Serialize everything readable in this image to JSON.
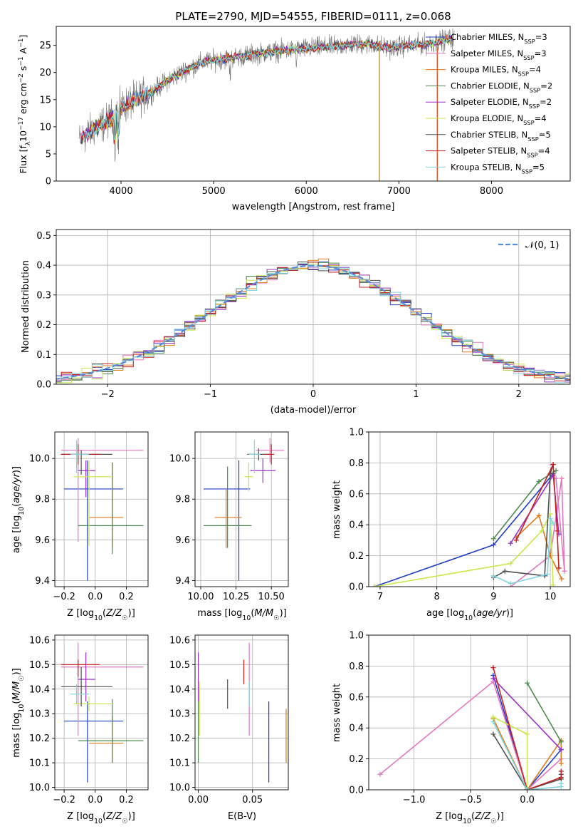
{
  "chart_data": [
    {
      "type": "line",
      "title": "PLATE=2790, MJD=54555, FIBERID=0111, z=0.068",
      "xlabel": "wavelength [Angstrom, rest frame]",
      "ylabel": "Flux [f_λ10^-17 erg cm^-2 s^-1 A^-1]",
      "xlim": [
        3300,
        8850
      ],
      "ylim": [
        0,
        28.5
      ],
      "xticks": [
        "4000",
        "5000",
        "6000",
        "7000",
        "8000"
      ],
      "yticks": [
        "0",
        "5",
        "10",
        "15",
        "20",
        "25"
      ],
      "spectrum_continuum": {
        "x": [
          3550,
          3700,
          3850,
          4000,
          4150,
          4300,
          4500,
          4700,
          4900,
          5100,
          5300,
          5500,
          5700,
          5900,
          6100,
          6300,
          6500,
          6700,
          6900,
          7100,
          7300,
          7500,
          7600
        ],
        "y": [
          7.5,
          9.5,
          11,
          13.5,
          15,
          16,
          18.5,
          20.5,
          22,
          22.5,
          23,
          23.5,
          24,
          24.2,
          24.6,
          24.8,
          25.2,
          25.2,
          24.5,
          25,
          25.2,
          26,
          26.3
        ]
      },
      "legend_placement": "top-right",
      "series": [
        {
          "name": "Chabrier MILES",
          "nssp": "3",
          "color": "#1f3fc8"
        },
        {
          "name": "Salpeter MILES",
          "nssp": "3",
          "color": "#e377c2"
        },
        {
          "name": "Kroupa MILES",
          "nssp": "4",
          "color": "#e07b1a"
        },
        {
          "name": "Chabrier ELODIE",
          "nssp": "2",
          "color": "#4e8a4e"
        },
        {
          "name": "Salpeter ELODIE",
          "nssp": "2",
          "color": "#9b30c8"
        },
        {
          "name": "Kroupa ELODIE",
          "nssp": "4",
          "color": "#c8e84a"
        },
        {
          "name": "Chabrier STELIB",
          "nssp": "5",
          "color": "#505050"
        },
        {
          "name": "Salpeter STELIB",
          "nssp": "4",
          "color": "#c81e1e"
        },
        {
          "name": "Kroupa STELIB",
          "nssp": "5",
          "color": "#7fd6e0"
        }
      ]
    },
    {
      "type": "line",
      "xlabel": "(data-model)/error",
      "ylabel": "Normed distribution",
      "xlim": [
        -2.5,
        2.5
      ],
      "ylim": [
        0,
        0.52
      ],
      "xticks": [
        "−2",
        "−1",
        "0",
        "1",
        "2"
      ],
      "yticks": [
        "0.0",
        "0.1",
        "0.2",
        "0.3",
        "0.4",
        "0.5"
      ],
      "legend": "𝒩(0, 1)",
      "legend_placement": "top-right",
      "gaussian": {
        "mu": 0,
        "sigma": 1
      },
      "histogram_bin_width": 0.1,
      "grid": true
    },
    {
      "type": "scatter",
      "xlabel": "Z [log10(Z/Z☉)]",
      "ylabel": "age  [log10(age/yr)]",
      "xlim": [
        -0.26,
        0.34
      ],
      "ylim": [
        9.37,
        10.13
      ],
      "xticks": [
        "−0.2",
        "0.0",
        "0.2"
      ],
      "yticks": [
        "9.4",
        "9.6",
        "9.8",
        "10.0"
      ],
      "points": [
        {
          "x": -0.05,
          "xerr": [
            0.15,
            0.23
          ],
          "y": 9.85,
          "yerr": [
            0.45,
            0.14
          ],
          "color": "#1f3fc8"
        },
        {
          "x": -0.11,
          "xerr": [
            0.11,
            0.42
          ],
          "y": 10.04,
          "yerr": [
            0.45,
            0.06
          ],
          "color": "#e377c2"
        },
        {
          "x": 0.11,
          "xerr": [
            0.15,
            0.07
          ],
          "y": 9.71,
          "yerr": [
            0.15,
            0.27
          ],
          "color": "#e07b1a"
        },
        {
          "x": 0.11,
          "xerr": [
            0.22,
            0.2
          ],
          "y": 9.67,
          "yerr": [
            0.14,
            0.31
          ],
          "color": "#4e8a4e"
        },
        {
          "x": -0.06,
          "xerr": [
            0.05,
            0.06
          ],
          "y": 9.94,
          "yerr": [
            0.13,
            0.05
          ],
          "color": "#9b30c8"
        },
        {
          "x": -0.04,
          "xerr": [
            0.1,
            0.15
          ],
          "y": 9.91,
          "yerr": [
            0.34,
            0.08
          ],
          "color": "#c8e84a"
        },
        {
          "x": -0.09,
          "xerr": [
            0.13,
            0.2
          ],
          "y": 10.02,
          "yerr": [
            0.1,
            0.02
          ],
          "color": "#505050"
        },
        {
          "x": -0.11,
          "xerr": [
            0.11,
            0.14
          ],
          "y": 10.02,
          "yerr": [
            0.05,
            0.05
          ],
          "color": "#c81e1e"
        },
        {
          "x": -0.12,
          "xerr": [
            0.04,
            0.08
          ],
          "y": 10.02,
          "yerr": [
            0.09,
            0.07
          ],
          "color": "#7fd6e0"
        }
      ]
    },
    {
      "type": "scatter",
      "xlabel": "mass [log10(M/M☉)]",
      "xlim": [
        9.96,
        10.62
      ],
      "ylim": [
        9.37,
        10.13
      ],
      "xticks": [
        "10.00",
        "10.25",
        "10.50"
      ],
      "yticks": [
        "9.4",
        "9.6",
        "9.8",
        "10.0"
      ],
      "points": [
        {
          "x": 10.27,
          "xerr": [
            0.25,
            0.08
          ],
          "y": 9.85,
          "yerr": [
            0.45,
            0.14
          ],
          "color": "#1f3fc8"
        },
        {
          "x": 10.49,
          "xerr": [
            0.1,
            0.1
          ],
          "y": 10.04,
          "yerr": [
            0.06,
            0.06
          ],
          "color": "#e377c2"
        },
        {
          "x": 10.18,
          "xerr": [
            0.08,
            0.11
          ],
          "y": 9.71,
          "yerr": [
            0.15,
            0.14
          ],
          "color": "#e07b1a"
        },
        {
          "x": 10.19,
          "xerr": [
            0.17,
            0.17
          ],
          "y": 9.67,
          "yerr": [
            0.11,
            0.29
          ],
          "color": "#4e8a4e"
        },
        {
          "x": 10.44,
          "xerr": [
            0.09,
            0.09
          ],
          "y": 9.94,
          "yerr": [
            0.06,
            0.06
          ],
          "color": "#9b30c8"
        },
        {
          "x": 10.34,
          "xerr": [
            0.03,
            0.03
          ],
          "y": 9.91,
          "yerr": [
            0.07,
            0.07
          ],
          "color": "#c8e84a"
        },
        {
          "x": 10.41,
          "xerr": [
            0.08,
            0.08
          ],
          "y": 10.02,
          "yerr": [
            0.03,
            0.03
          ],
          "color": "#505050"
        },
        {
          "x": 10.5,
          "xerr": [
            0.05,
            0.02
          ],
          "y": 10.02,
          "yerr": [
            0.05,
            0.05
          ],
          "color": "#c81e1e"
        },
        {
          "x": 10.38,
          "xerr": [
            0.04,
            0.04
          ],
          "y": 10.02,
          "yerr": [
            0.09,
            0.07
          ],
          "color": "#7fd6e0"
        }
      ]
    },
    {
      "type": "line",
      "xlabel": "age  [log10(age/yr)]",
      "ylabel": "mass weight",
      "xlim": [
        6.8,
        10.35
      ],
      "ylim": [
        0,
        1
      ],
      "xticks": [
        "7",
        "8",
        "9",
        "10"
      ],
      "yticks": [
        "0.0",
        "0.2",
        "0.4",
        "0.6",
        "0.8",
        "1.0"
      ],
      "grid": true,
      "series": [
        {
          "color": "#1f3fc8",
          "x": [
            6.9,
            9.0,
            10.05
          ],
          "y": [
            0.0,
            0.27,
            0.73
          ]
        },
        {
          "color": "#e377c2",
          "x": [
            9.3,
            10.0,
            10.2,
            10.25,
            10.1
          ],
          "y": [
            0.0,
            0.2,
            0.7,
            0.1,
            0.7
          ]
        },
        {
          "color": "#e07b1a",
          "x": [
            9.4,
            9.8,
            10.0,
            10.2
          ],
          "y": [
            0.32,
            0.46,
            0.2,
            0.05
          ]
        },
        {
          "color": "#4e8a4e",
          "x": [
            9.0,
            9.8,
            10.1
          ],
          "y": [
            0.31,
            0.68,
            0.75
          ]
        },
        {
          "color": "#9b30c8",
          "x": [
            9.3,
            10.05,
            10.15
          ],
          "y": [
            0.28,
            0.72,
            0.34
          ]
        },
        {
          "color": "#c8e84a",
          "x": [
            6.9,
            9.3,
            9.85,
            10.0,
            10.05
          ],
          "y": [
            0.0,
            0.15,
            0.36,
            0.47,
            0.01
          ]
        },
        {
          "color": "#505050",
          "x": [
            9.0,
            9.2,
            9.9,
            10.0,
            10.05
          ],
          "y": [
            0.06,
            0.1,
            0.07,
            0.73,
            0.79
          ]
        },
        {
          "color": "#c81e1e",
          "x": [
            9.4,
            10.05,
            10.12,
            10.15
          ],
          "y": [
            0.3,
            0.79,
            0.36,
            0.12
          ]
        },
        {
          "color": "#7fd6e0",
          "x": [
            9.0,
            9.3,
            9.95,
            10.0,
            10.05
          ],
          "y": [
            0.07,
            0.02,
            0.08,
            0.44,
            0.41
          ]
        }
      ]
    },
    {
      "type": "scatter",
      "xlabel": "Z [log10(Z/Z☉)]",
      "ylabel": "mass [log10(M/M☉)]",
      "xlim": [
        -0.26,
        0.34
      ],
      "ylim": [
        9.99,
        10.62
      ],
      "xticks": [
        "−0.2",
        "0.0",
        "0.2"
      ],
      "yticks": [
        "10.0",
        "10.1",
        "10.2",
        "10.3",
        "10.4",
        "10.5",
        "10.6"
      ],
      "points": [
        {
          "x": -0.05,
          "xerr": [
            0.15,
            0.23
          ],
          "y": 10.27,
          "yerr": [
            0.25,
            0.08
          ],
          "color": "#1f3fc8"
        },
        {
          "x": -0.11,
          "xerr": [
            0.11,
            0.42
          ],
          "y": 10.49,
          "yerr": [
            0.28,
            0.1
          ],
          "color": "#e377c2"
        },
        {
          "x": 0.11,
          "xerr": [
            0.15,
            0.07
          ],
          "y": 10.18,
          "yerr": [
            0.08,
            0.11
          ],
          "color": "#e07b1a"
        },
        {
          "x": 0.11,
          "xerr": [
            0.22,
            0.2
          ],
          "y": 10.19,
          "yerr": [
            0.09,
            0.17
          ],
          "color": "#4e8a4e"
        },
        {
          "x": -0.06,
          "xerr": [
            0.05,
            0.06
          ],
          "y": 10.44,
          "yerr": [
            0.09,
            0.11
          ],
          "color": "#9b30c8"
        },
        {
          "x": -0.04,
          "xerr": [
            0.1,
            0.15
          ],
          "y": 10.34,
          "yerr": [
            0.03,
            0.03
          ],
          "color": "#c8e84a"
        },
        {
          "x": -0.09,
          "xerr": [
            0.13,
            0.2
          ],
          "y": 10.41,
          "yerr": [
            0.08,
            0.08
          ],
          "color": "#505050"
        },
        {
          "x": -0.11,
          "xerr": [
            0.11,
            0.14
          ],
          "y": 10.5,
          "yerr": [
            0.05,
            0.02
          ],
          "color": "#c81e1e"
        },
        {
          "x": -0.12,
          "xerr": [
            0.04,
            0.08
          ],
          "y": 10.38,
          "yerr": [
            0.04,
            0.04
          ],
          "color": "#7fd6e0"
        }
      ]
    },
    {
      "type": "scatter",
      "xlabel": "E(B-V)",
      "xlim": [
        -0.003,
        0.083
      ],
      "ylim": [
        9.99,
        10.62
      ],
      "xticks": [
        "0.00",
        "0.05"
      ],
      "yticks": [
        "10.0",
        "10.1",
        "10.2",
        "10.3",
        "10.4",
        "10.5",
        "10.6"
      ],
      "points": [
        {
          "x": 0.065,
          "y": 10.27,
          "yerr": [
            0.25,
            0.08
          ],
          "color": "#1f3fc8"
        },
        {
          "x": 0.047,
          "y": 10.49,
          "yerr": [
            0.28,
            0.1
          ],
          "color": "#e377c2"
        },
        {
          "x": 0.081,
          "y": 10.18,
          "yerr": [
            0.08,
            0.14
          ],
          "color": "#e07b1a"
        },
        {
          "x": 0.0,
          "y": 10.19,
          "yerr": [
            0.09,
            0.24
          ],
          "color": "#4e8a4e"
        },
        {
          "x": 0.0,
          "y": 10.44,
          "yerr": [
            0.09,
            0.11
          ],
          "color": "#9b30c8"
        },
        {
          "x": 0.001,
          "y": 10.34,
          "yerr": [
            0.13,
            0.09
          ],
          "color": "#c8e84a"
        },
        {
          "x": 0.027,
          "y": 10.38,
          "yerr": [
            0.06,
            0.06
          ],
          "color": "#505050"
        },
        {
          "x": 0.042,
          "y": 10.47,
          "yerr": [
            0.05,
            0.05
          ],
          "color": "#c81e1e"
        },
        {
          "x": 0.047,
          "y": 10.38,
          "yerr": [
            0.05,
            0.05
          ],
          "color": "#7fd6e0"
        }
      ]
    },
    {
      "type": "line",
      "xlabel": "Z [log10(Z/Z☉)]",
      "ylabel": "mass weight",
      "xlim": [
        -1.4,
        0.38
      ],
      "ylim": [
        0,
        1
      ],
      "xticks": [
        "−1.0",
        "−0.5",
        "0.0"
      ],
      "yticks": [
        "0.0",
        "0.2",
        "0.4",
        "0.6",
        "0.8",
        "1.0"
      ],
      "grid": true,
      "series": [
        {
          "color": "#1f3fc8",
          "x": [
            -0.3,
            0.0,
            0.3
          ],
          "y": [
            0.74,
            0.0,
            0.26
          ]
        },
        {
          "color": "#e377c2",
          "x": [
            -1.3,
            -0.3,
            0.0,
            0.3
          ],
          "y": [
            0.1,
            0.7,
            0.0,
            0.2
          ]
        },
        {
          "color": "#e07b1a",
          "x": [
            -0.3,
            0.0,
            0.3,
            0.3
          ],
          "y": [
            0.46,
            0.0,
            0.32,
            0.17
          ]
        },
        {
          "color": "#4e8a4e",
          "x": [
            0.0,
            0.3
          ],
          "y": [
            0.69,
            0.31
          ]
        },
        {
          "color": "#9b30c8",
          "x": [
            -0.3,
            0.3
          ],
          "y": [
            0.72,
            0.26
          ]
        },
        {
          "color": "#c8e84a",
          "x": [
            -0.3,
            0.0,
            0.0
          ],
          "y": [
            0.47,
            0.36,
            0.01
          ]
        },
        {
          "color": "#505050",
          "x": [
            -0.3,
            0.0,
            0.3,
            0.3
          ],
          "y": [
            0.36,
            0.0,
            0.07,
            0.1
          ]
        },
        {
          "color": "#c81e1e",
          "x": [
            -0.3,
            0.0,
            0.3,
            0.3
          ],
          "y": [
            0.79,
            0.0,
            0.08,
            0.12
          ]
        },
        {
          "color": "#7fd6e0",
          "x": [
            -0.3,
            0.0,
            0.3,
            0.3
          ],
          "y": [
            0.44,
            0.0,
            0.02,
            0.04
          ]
        }
      ]
    }
  ]
}
